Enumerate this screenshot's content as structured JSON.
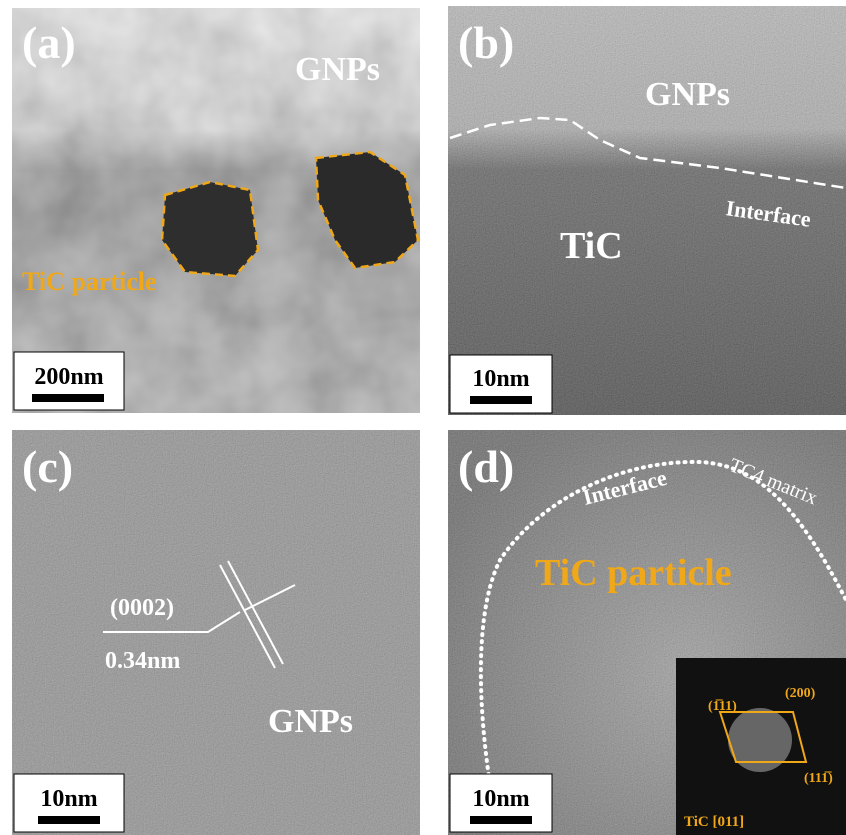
{
  "panels": [
    {
      "label": "(a)",
      "scale_bar": "200nm",
      "annotations": [
        "GNPs",
        "TiC particle"
      ]
    },
    {
      "label": "(b)",
      "scale_bar": "10nm",
      "annotations": [
        "GNPs",
        "Interface",
        "TiC"
      ]
    },
    {
      "label": "(c)",
      "scale_bar": "10nm",
      "annotations": [
        "(0002)",
        "0.34nm",
        "GNPs"
      ]
    },
    {
      "label": "(d)",
      "scale_bar": "10nm",
      "annotations": [
        "Interface",
        "TC4 matrix",
        "TiC particle"
      ],
      "inset": {
        "spots": [
          "(1̅11)",
          "(200)",
          "(111̅)"
        ],
        "zone_axis": "TiC [011]"
      }
    }
  ]
}
